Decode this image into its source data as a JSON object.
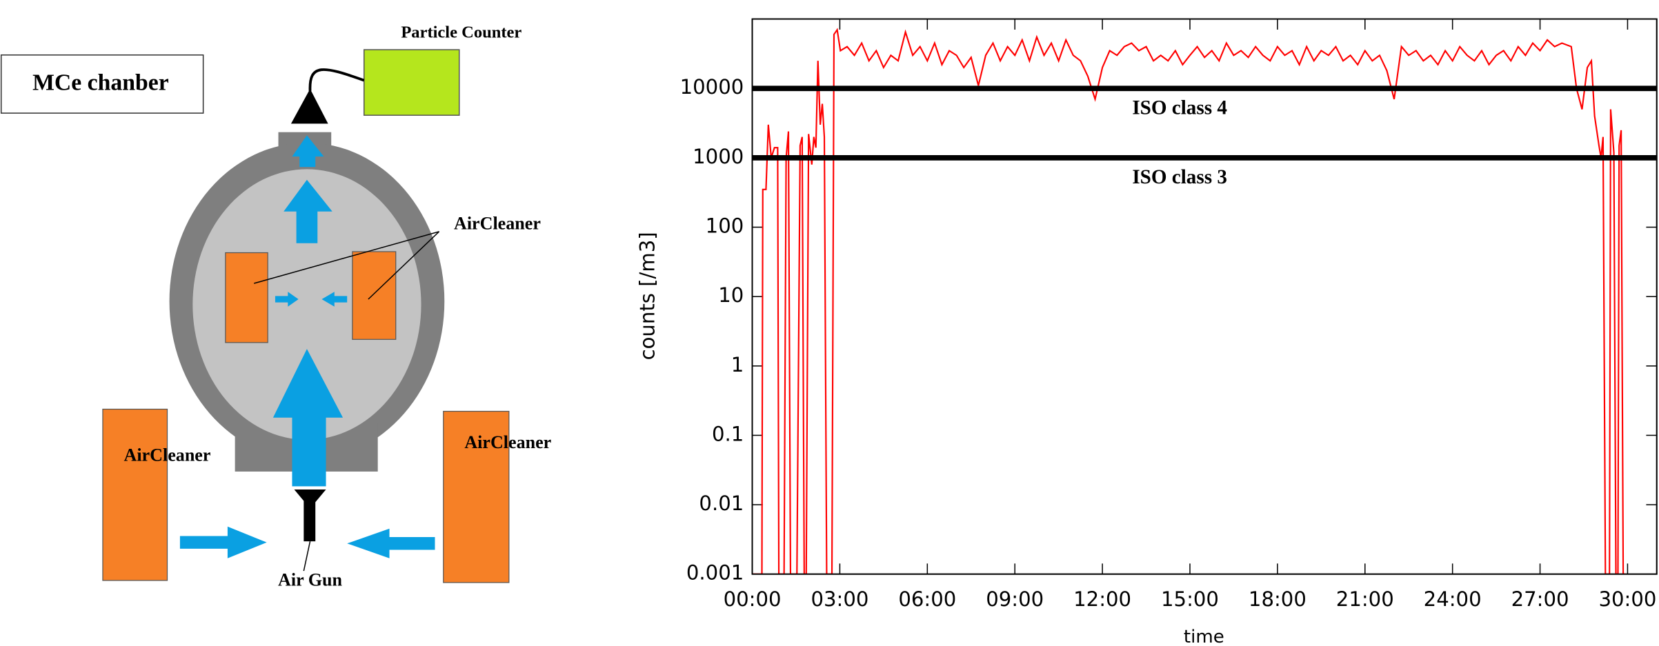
{
  "diagram": {
    "title": "MCe chanber",
    "particle_counter": "Particle Counter",
    "labels": [
      "AirCleaner",
      "AirCleaner",
      "AirCleaner"
    ],
    "air_gun": "Air Gun"
  },
  "chart_data": {
    "type": "line",
    "ylabel": "counts [/m3]",
    "xlabel": "time",
    "log_y": true,
    "xlim": [
      0,
      31
    ],
    "ylim": [
      0.001,
      100000
    ],
    "xticks": [
      {
        "value": 0,
        "label": "00:00"
      },
      {
        "value": 3,
        "label": "03:00"
      },
      {
        "value": 6,
        "label": "06:00"
      },
      {
        "value": 9,
        "label": "09:00"
      },
      {
        "value": 12,
        "label": "12:00"
      },
      {
        "value": 15,
        "label": "15:00"
      },
      {
        "value": 18,
        "label": "18:00"
      },
      {
        "value": 21,
        "label": "21:00"
      },
      {
        "value": 24,
        "label": "24:00"
      },
      {
        "value": 27,
        "label": "27:00"
      },
      {
        "value": 30,
        "label": "30:00"
      }
    ],
    "yticks": [
      0.001,
      0.01,
      0.1,
      1,
      10,
      100,
      1000,
      10000
    ],
    "reference_lines": [
      {
        "value": 10000,
        "label": "ISO class 4",
        "color": "#000000"
      },
      {
        "value": 1000,
        "label": "ISO class 3",
        "color": "#000000"
      }
    ],
    "series": [
      {
        "color": "#ff0000",
        "x": [
          0,
          0.33,
          0.36,
          0.47,
          0.55,
          0.65,
          0.76,
          0.87,
          0.91,
          1.09,
          1.16,
          1.24,
          1.31,
          1.53,
          1.64,
          1.71,
          1.78,
          1.85,
          1.93,
          2.04,
          2.11,
          2.18,
          2.25,
          2.33,
          2.4,
          2.47,
          2.55,
          2.73,
          2.8,
          2.91,
          3.02,
          3.25,
          3.5,
          3.75,
          4,
          4.25,
          4.5,
          4.75,
          5,
          5.25,
          5.5,
          5.75,
          6,
          6.25,
          6.5,
          6.75,
          7,
          7.25,
          7.5,
          7.75,
          8,
          8.25,
          8.5,
          8.75,
          9,
          9.25,
          9.5,
          9.75,
          10,
          10.25,
          10.5,
          10.75,
          11,
          11.25,
          11.5,
          11.75,
          12,
          12.25,
          12.5,
          12.75,
          13,
          13.25,
          13.5,
          13.75,
          14,
          14.25,
          14.5,
          14.75,
          15,
          15.25,
          15.5,
          15.75,
          16,
          16.25,
          16.5,
          16.75,
          17,
          17.25,
          17.5,
          17.75,
          18,
          18.25,
          18.5,
          18.75,
          19,
          19.25,
          19.5,
          19.75,
          20,
          20.25,
          20.5,
          20.75,
          21,
          21.25,
          21.5,
          21.75,
          22,
          22.25,
          22.5,
          22.75,
          23,
          23.25,
          23.5,
          23.75,
          24,
          24.25,
          24.5,
          24.75,
          25,
          25.25,
          25.5,
          25.75,
          26,
          26.25,
          26.5,
          26.75,
          27,
          27.25,
          27.5,
          27.75,
          28.07,
          28.25,
          28.44,
          28.62,
          28.76,
          28.87,
          29.02,
          29.09,
          29.16,
          29.24,
          29.38,
          29.42,
          29.53,
          29.6,
          29.67,
          29.71,
          29.78,
          29.85,
          29.93
        ],
        "values": [
          0.001,
          0.001,
          350,
          350,
          3000,
          1000,
          1400,
          1400,
          0.001,
          0.001,
          1000,
          2400,
          0.001,
          0.001,
          1500,
          2000,
          0.001,
          0.001,
          2200,
          800,
          2000,
          1400,
          25000,
          3000,
          6000,
          2000,
          0.001,
          0.001,
          60000,
          70000,
          35000,
          40000,
          30000,
          45000,
          25000,
          35000,
          20000,
          30000,
          25000,
          65000,
          30000,
          40000,
          25000,
          45000,
          22000,
          35000,
          30000,
          20000,
          28000,
          11000,
          30000,
          45000,
          25000,
          40000,
          30000,
          50000,
          25000,
          55000,
          30000,
          45000,
          25000,
          50000,
          30000,
          25000,
          15000,
          7000,
          20000,
          35000,
          30000,
          40000,
          45000,
          35000,
          40000,
          25000,
          30000,
          25000,
          35000,
          22000,
          30000,
          40000,
          28000,
          35000,
          25000,
          45000,
          30000,
          35000,
          28000,
          40000,
          30000,
          25000,
          40000,
          30000,
          35000,
          22000,
          40000,
          25000,
          35000,
          30000,
          40000,
          25000,
          30000,
          22000,
          35000,
          25000,
          30000,
          18000,
          7000,
          40000,
          30000,
          35000,
          25000,
          30000,
          22000,
          35000,
          25000,
          40000,
          30000,
          25000,
          35000,
          22000,
          30000,
          35000,
          25000,
          40000,
          30000,
          45000,
          35000,
          50000,
          40000,
          45000,
          40000,
          10000,
          5000,
          20000,
          25000,
          4000,
          1500,
          1000,
          2000,
          0.001,
          0.001,
          5000,
          1200,
          0.001,
          0.001,
          1500,
          2500,
          0.001,
          0.001
        ]
      }
    ]
  }
}
